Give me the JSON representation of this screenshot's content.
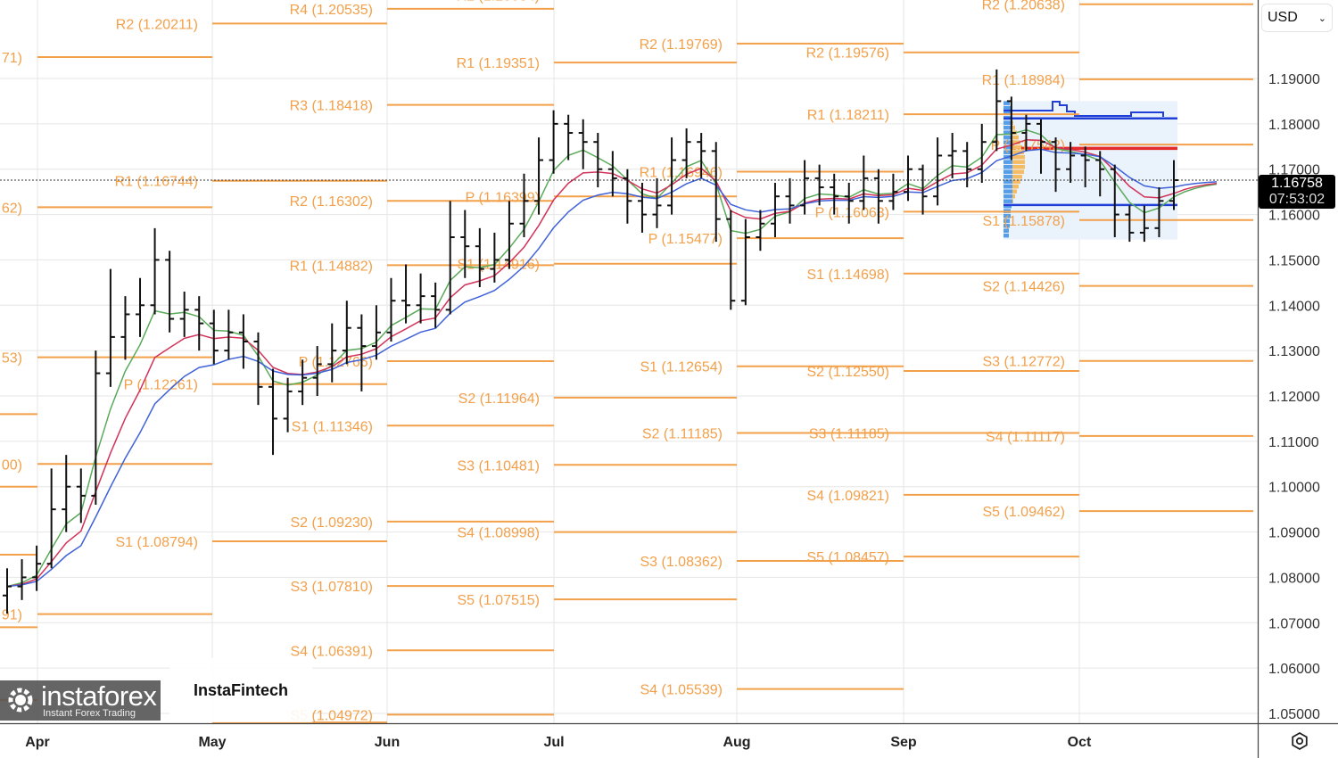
{
  "currency_select": {
    "value": "USD"
  },
  "current_price": {
    "value": "1.16758",
    "countdown": "07:53:02",
    "price": 1.16758
  },
  "watermark": {
    "text": "InstaFintech"
  },
  "logo": {
    "name": "instaforex",
    "tagline": "Instant Forex Trading"
  },
  "colors": {
    "pivot": "#f2a04a",
    "ma_fast": "#5aaa5a",
    "ma_mid": "#d2335a",
    "ma_slow": "#3f62d8",
    "bars": "#111111",
    "profile_blue": "#1f3fd6",
    "profile_red": "#e52a2a"
  },
  "chart_data": {
    "type": "ohlc-bar",
    "ylim": [
      1.045,
      1.2075
    ],
    "y_ticks": [
      "1.19000",
      "1.18000",
      "1.17000",
      "1.16000",
      "1.15000",
      "1.14000",
      "1.13000",
      "1.12000",
      "1.11000",
      "1.10000",
      "1.09000",
      "1.08000",
      "1.07000",
      "1.06000",
      "1.05000"
    ],
    "x_ticks": [
      "Apr",
      "May",
      "Jun",
      "Jul",
      "Aug",
      "Sep",
      "Oct"
    ],
    "grid": true,
    "bars": [
      [
        1.076,
        1.082,
        1.072,
        1.078
      ],
      [
        1.078,
        1.084,
        1.075,
        1.08
      ],
      [
        1.08,
        1.087,
        1.077,
        1.083
      ],
      [
        1.083,
        1.104,
        1.082,
        1.095
      ],
      [
        1.095,
        1.107,
        1.09,
        1.1
      ],
      [
        1.1,
        1.104,
        1.092,
        1.098
      ],
      [
        1.098,
        1.13,
        1.096,
        1.125
      ],
      [
        1.125,
        1.148,
        1.122,
        1.133
      ],
      [
        1.133,
        1.142,
        1.128,
        1.138
      ],
      [
        1.138,
        1.146,
        1.133,
        1.14
      ],
      [
        1.14,
        1.157,
        1.138,
        1.15
      ],
      [
        1.15,
        1.152,
        1.134,
        1.137
      ],
      [
        1.137,
        1.143,
        1.133,
        1.139
      ],
      [
        1.139,
        1.142,
        1.13,
        1.136
      ],
      [
        1.136,
        1.139,
        1.127,
        1.13
      ],
      [
        1.13,
        1.139,
        1.128,
        1.134
      ],
      [
        1.134,
        1.138,
        1.126,
        1.132
      ],
      [
        1.132,
        1.134,
        1.118,
        1.122
      ],
      [
        1.122,
        1.126,
        1.107,
        1.115
      ],
      [
        1.115,
        1.124,
        1.112,
        1.121
      ],
      [
        1.121,
        1.128,
        1.118,
        1.124
      ],
      [
        1.124,
        1.131,
        1.12,
        1.127
      ],
      [
        1.127,
        1.136,
        1.123,
        1.13
      ],
      [
        1.13,
        1.141,
        1.127,
        1.135
      ],
      [
        1.135,
        1.138,
        1.121,
        1.131
      ],
      [
        1.131,
        1.14,
        1.128,
        1.134
      ],
      [
        1.134,
        1.146,
        1.132,
        1.141
      ],
      [
        1.141,
        1.149,
        1.136,
        1.14
      ],
      [
        1.14,
        1.147,
        1.136,
        1.142
      ],
      [
        1.142,
        1.145,
        1.135,
        1.139
      ],
      [
        1.139,
        1.163,
        1.138,
        1.155
      ],
      [
        1.155,
        1.161,
        1.146,
        1.153
      ],
      [
        1.153,
        1.157,
        1.144,
        1.148
      ],
      [
        1.148,
        1.156,
        1.145,
        1.15
      ],
      [
        1.15,
        1.163,
        1.148,
        1.158
      ],
      [
        1.158,
        1.169,
        1.155,
        1.163
      ],
      [
        1.163,
        1.177,
        1.16,
        1.172
      ],
      [
        1.172,
        1.183,
        1.169,
        1.18
      ],
      [
        1.18,
        1.182,
        1.172,
        1.178
      ],
      [
        1.178,
        1.181,
        1.17,
        1.176
      ],
      [
        1.176,
        1.178,
        1.166,
        1.17
      ],
      [
        1.17,
        1.174,
        1.164,
        1.168
      ],
      [
        1.168,
        1.17,
        1.158,
        1.163
      ],
      [
        1.163,
        1.167,
        1.156,
        1.16
      ],
      [
        1.16,
        1.168,
        1.157,
        1.162
      ],
      [
        1.162,
        1.177,
        1.16,
        1.172
      ],
      [
        1.172,
        1.179,
        1.168,
        1.176
      ],
      [
        1.176,
        1.178,
        1.168,
        1.174
      ],
      [
        1.174,
        1.176,
        1.154,
        1.159
      ],
      [
        1.159,
        1.161,
        1.139,
        1.141
      ],
      [
        1.141,
        1.159,
        1.14,
        1.155
      ],
      [
        1.155,
        1.161,
        1.152,
        1.158
      ],
      [
        1.158,
        1.167,
        1.155,
        1.164
      ],
      [
        1.164,
        1.168,
        1.158,
        1.162
      ],
      [
        1.162,
        1.172,
        1.16,
        1.168
      ],
      [
        1.168,
        1.171,
        1.162,
        1.166
      ],
      [
        1.166,
        1.169,
        1.16,
        1.164
      ],
      [
        1.164,
        1.167,
        1.158,
        1.163
      ],
      [
        1.163,
        1.173,
        1.161,
        1.168
      ],
      [
        1.168,
        1.17,
        1.158,
        1.163
      ],
      [
        1.163,
        1.169,
        1.161,
        1.165
      ],
      [
        1.165,
        1.173,
        1.163,
        1.17
      ],
      [
        1.17,
        1.171,
        1.16,
        1.164
      ],
      [
        1.164,
        1.177,
        1.162,
        1.173
      ],
      [
        1.173,
        1.178,
        1.168,
        1.174
      ],
      [
        1.174,
        1.176,
        1.166,
        1.17
      ],
      [
        1.17,
        1.18,
        1.167,
        1.176
      ],
      [
        1.176,
        1.192,
        1.174,
        1.185
      ],
      [
        1.185,
        1.186,
        1.172,
        1.178
      ],
      [
        1.178,
        1.182,
        1.174,
        1.18
      ],
      [
        1.18,
        1.181,
        1.169,
        1.176
      ],
      [
        1.176,
        1.177,
        1.165,
        1.17
      ],
      [
        1.17,
        1.176,
        1.167,
        1.173
      ],
      [
        1.173,
        1.175,
        1.166,
        1.172
      ],
      [
        1.172,
        1.174,
        1.164,
        1.17
      ],
      [
        1.17,
        1.171,
        1.155,
        1.16
      ],
      [
        1.16,
        1.162,
        1.154,
        1.156
      ],
      [
        1.156,
        1.162,
        1.154,
        1.157
      ],
      [
        1.157,
        1.166,
        1.155,
        1.163
      ],
      [
        1.163,
        1.172,
        1.161,
        1.16758
      ]
    ],
    "pivot_periods": [
      {
        "levels": [
          {
            "label": "",
            "value": 1.085
          },
          {
            "label": "",
            "value": 1.069
          },
          {
            "label": "",
            "value": 1.116
          },
          {
            "label": "",
            "value": 1.1
          },
          {
            "label": "",
            "value": 1.053
          }
        ]
      },
      {
        "levels": [
          {
            "label": "71)",
            "value": 1.19471
          },
          {
            "label": "62)",
            "value": 1.16162
          },
          {
            "label": "53)",
            "value": 1.12853
          },
          {
            "label": "00)",
            "value": 1.105
          },
          {
            "label": "91)",
            "value": 1.07191
          }
        ]
      },
      {
        "levels": [
          {
            "label": "R2 (1.20211)",
            "value": 1.20211
          },
          {
            "label": "R1 (1.16744)",
            "value": 1.16744
          },
          {
            "label": "P (1.12261)",
            "value": 1.12261
          },
          {
            "label": "S1 (1.08794)",
            "value": 1.08794
          },
          {
            "label": "",
            "value": 1.048
          }
        ]
      },
      {
        "levels": [
          {
            "label": "R4 (1.20535)",
            "value": 1.20535
          },
          {
            "label": "R3 (1.18418)",
            "value": 1.18418
          },
          {
            "label": "R2 (1.16302)",
            "value": 1.16302
          },
          {
            "label": "R1 (1.14882)",
            "value": 1.14882
          },
          {
            "label": "P (1.12766)",
            "value": 1.12766
          },
          {
            "label": "S1 (1.11346)",
            "value": 1.11346
          },
          {
            "label": "S2 (1.09230)",
            "value": 1.0923
          },
          {
            "label": "S3 (1.07810)",
            "value": 1.0781
          },
          {
            "label": "S4 (1.06391)",
            "value": 1.06391
          },
          {
            "label": "S5 (1.04972)",
            "value": 1.04972
          }
        ]
      },
      {
        "levels": [
          {
            "label": "R2 (1.20834)",
            "value": 1.20834
          },
          {
            "label": "R1 (1.19351)",
            "value": 1.19351
          },
          {
            "label": "P (1.16399)",
            "value": 1.16399
          },
          {
            "label": "S1 (1.14916)",
            "value": 1.14916
          },
          {
            "label": "S2 (1.11964)",
            "value": 1.11964
          },
          {
            "label": "S3 (1.10481)",
            "value": 1.10481
          },
          {
            "label": "S4 (1.08998)",
            "value": 1.08998
          },
          {
            "label": "S5 (1.07515)",
            "value": 1.07515
          }
        ]
      },
      {
        "levels": [
          {
            "label": "R2 (1.19769)",
            "value": 1.19769
          },
          {
            "label": "R1 (1.16946)",
            "value": 1.16946
          },
          {
            "label": "P (1.15477)",
            "value": 1.15477
          },
          {
            "label": "S1 (1.12654)",
            "value": 1.12654
          },
          {
            "label": "S2 (1.11185)",
            "value": 1.11185
          },
          {
            "label": "S3 (1.08362)",
            "value": 1.08362
          },
          {
            "label": "S4 (1.05539)",
            "value": 1.05539
          }
        ]
      },
      {
        "levels": [
          {
            "label": "R2 (1.19576)",
            "value": 1.19576
          },
          {
            "label": "R1 (1.18211)",
            "value": 1.18211
          },
          {
            "label": "P (1.16063)",
            "value": 1.16063
          },
          {
            "label": "S1 (1.14698)",
            "value": 1.14698
          },
          {
            "label": "S2 (1.12550)",
            "value": 1.1255
          },
          {
            "label": "S3 (1.11185)",
            "value": 1.11185
          },
          {
            "label": "S4 (1.09821)",
            "value": 1.09821
          },
          {
            "label": "S5 (1.08457)",
            "value": 1.08457
          }
        ]
      },
      {
        "levels": [
          {
            "label": "R2 (1.20638)",
            "value": 1.20638
          },
          {
            "label": "R1 (1.18984)",
            "value": 1.18984
          },
          {
            "label": "P (1.17542)",
            "value": 1.17542
          },
          {
            "label": "S1 (1.15878)",
            "value": 1.15878
          },
          {
            "label": "S2 (1.14426)",
            "value": 1.14426
          },
          {
            "label": "S3 (1.12772)",
            "value": 1.12772
          },
          {
            "label": "S4 (1.11117)",
            "value": 1.11117
          },
          {
            "label": "S5 (1.09462)",
            "value": 1.09462
          }
        ]
      }
    ],
    "volume_profile": {
      "value_area_high": 1.1812,
      "point_of_control": 1.1746,
      "value_area_low": 1.1621,
      "range_high": 1.185,
      "range_low": 1.1545
    }
  }
}
